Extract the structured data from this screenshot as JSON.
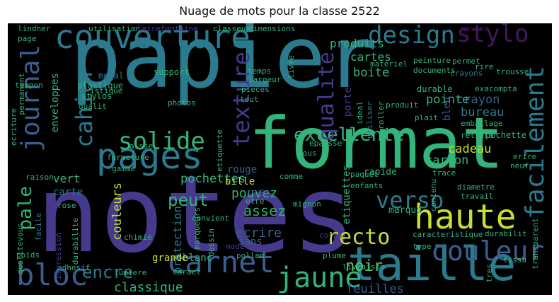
{
  "title": "Nuage de mots pour la classe 2522",
  "palette": {
    "teal": "#2a7b8e",
    "green": "#32b47b",
    "yellow": "#c8df2c",
    "indigo": "#463a8c",
    "purple": "#45165f",
    "blue": "#3a5f8e",
    "mint": "#52c469",
    "navy": "#32447f"
  },
  "words": [
    {
      "text": "papier",
      "color": "teal"
    },
    {
      "text": "notes",
      "color": "indigo"
    },
    {
      "text": "format",
      "color": "green"
    },
    {
      "text": "taille",
      "color": "teal"
    },
    {
      "text": "carnet",
      "color": "blue"
    },
    {
      "text": "couverture",
      "color": "teal"
    },
    {
      "text": "haute",
      "color": "yellow"
    },
    {
      "text": "pages",
      "color": "teal"
    },
    {
      "text": "bloc",
      "color": "blue"
    },
    {
      "text": "design",
      "color": "teal"
    },
    {
      "text": "stylo",
      "color": "purple"
    },
    {
      "text": "couleur",
      "color": "blue"
    },
    {
      "text": "jaune",
      "color": "green"
    },
    {
      "text": "recto",
      "color": "yellow"
    },
    {
      "text": "journal",
      "color": "blue"
    },
    {
      "text": "solide",
      "color": "green"
    },
    {
      "text": "excellente",
      "color": "green"
    },
    {
      "text": "verso",
      "color": "teal"
    },
    {
      "text": "facilement",
      "color": "teal"
    },
    {
      "text": "texture",
      "color": "indigo"
    },
    {
      "text": "qualite",
      "color": "indigo"
    },
    {
      "text": "cahier",
      "color": "teal"
    },
    {
      "text": "pale",
      "color": "green"
    },
    {
      "text": "encre",
      "color": "teal"
    },
    {
      "text": "classique",
      "color": "green"
    },
    {
      "text": "feuilles",
      "color": "blue"
    },
    {
      "text": "noir",
      "color": "mint"
    },
    {
      "text": "assez",
      "color": "green"
    },
    {
      "text": "pochettes",
      "color": "green"
    },
    {
      "text": "pouvez",
      "color": "green"
    },
    {
      "text": "peut",
      "color": "green"
    },
    {
      "text": "ecrire",
      "color": "blue"
    },
    {
      "text": "couleurs",
      "color": "yellow"
    },
    {
      "text": "protection",
      "color": "teal"
    },
    {
      "text": "cadeau",
      "color": "yellow"
    },
    {
      "text": "carton",
      "color": "green"
    },
    {
      "text": "bureau",
      "color": "teal"
    },
    {
      "text": "crayon",
      "color": "blue"
    },
    {
      "text": "pointe",
      "color": "green"
    },
    {
      "text": "boite",
      "color": "green"
    },
    {
      "text": "cartes",
      "color": "green"
    },
    {
      "text": "produits",
      "color": "green"
    },
    {
      "text": "enveloppes",
      "color": "green"
    },
    {
      "text": "vert",
      "color": "green"
    },
    {
      "text": "carte",
      "color": "teal"
    },
    {
      "text": "rouge",
      "color": "blue"
    },
    {
      "text": "bille",
      "color": "yellow"
    },
    {
      "text": "blanc",
      "color": "green"
    },
    {
      "text": "sans",
      "color": "blue"
    },
    {
      "text": "grande",
      "color": "yellow"
    },
    {
      "text": "marque",
      "color": "green"
    },
    {
      "text": "etiquettes",
      "color": "green"
    },
    {
      "text": "rapide",
      "color": "green"
    },
    {
      "text": "porte",
      "color": "indigo"
    },
    {
      "text": "bleu",
      "color": "blue"
    },
    {
      "text": "durable",
      "color": "green"
    },
    {
      "text": "pochette",
      "color": "green"
    },
    {
      "text": "support",
      "color": "green"
    },
    {
      "text": "plastique",
      "color": "green"
    },
    {
      "text": "stylos",
      "color": "green"
    },
    {
      "text": "qualit",
      "color": "green"
    },
    {
      "text": "metal",
      "color": "teal"
    },
    {
      "text": "temps",
      "color": "green"
    },
    {
      "text": "largeur",
      "color": "green"
    },
    {
      "text": "pieces",
      "color": "green"
    },
    {
      "text": "tout",
      "color": "green"
    },
    {
      "text": "materiel",
      "color": "green"
    },
    {
      "text": "peinture",
      "color": "green"
    },
    {
      "text": "crayons",
      "color": "teal"
    },
    {
      "text": "exacompta",
      "color": "green"
    },
    {
      "text": "emballage",
      "color": "green"
    },
    {
      "text": "tous",
      "color": "green"
    },
    {
      "text": "fermeture",
      "color": "green"
    },
    {
      "text": "aisse",
      "color": "green"
    },
    {
      "text": "rose",
      "color": "green"
    },
    {
      "text": "facile",
      "color": "teal"
    },
    {
      "text": "chimie",
      "color": "green"
    },
    {
      "text": "lumiere",
      "color": "green"
    },
    {
      "text": "adhesif",
      "color": "green"
    },
    {
      "text": "durabilite",
      "color": "green"
    },
    {
      "text": "marqueurs",
      "color": "green"
    },
    {
      "text": "modele",
      "color": "indigo"
    },
    {
      "text": "pollen",
      "color": "green"
    },
    {
      "text": "plume",
      "color": "green"
    },
    {
      "text": "livraison",
      "color": "green"
    },
    {
      "text": "type",
      "color": "green"
    },
    {
      "text": "caracteristique",
      "color": "green"
    },
    {
      "text": "durabilit",
      "color": "green"
    },
    {
      "text": "mignon",
      "color": "green"
    },
    {
      "text": "corps",
      "color": "indigo"
    },
    {
      "text": "paquet",
      "color": "green"
    },
    {
      "text": "enfants",
      "color": "green"
    },
    {
      "text": "comme",
      "color": "green"
    },
    {
      "text": "trace",
      "color": "green"
    },
    {
      "text": "neuf",
      "color": "green"
    },
    {
      "text": "erire",
      "color": "green"
    },
    {
      "text": "diametre",
      "color": "green"
    },
    {
      "text": "travail",
      "color": "green"
    },
    {
      "text": "utilisation",
      "color": "green"
    },
    {
      "text": "clairefontaine",
      "color": "indigo"
    },
    {
      "text": "classeur",
      "color": "green"
    },
    {
      "text": "dimensions",
      "color": "green"
    },
    {
      "text": "lindner",
      "color": "green"
    },
    {
      "text": "page",
      "color": "green"
    },
    {
      "text": "documents",
      "color": "green"
    },
    {
      "text": "permet",
      "color": "green"
    },
    {
      "text": "rire",
      "color": "green"
    },
    {
      "text": "ideal",
      "color": "green"
    },
    {
      "text": "utiliser",
      "color": "teal"
    },
    {
      "text": "roller",
      "color": "green"
    },
    {
      "text": "produit",
      "color": "green"
    },
    {
      "text": "plait",
      "color": "green"
    },
    {
      "text": "reliure",
      "color": "green"
    },
    {
      "text": "trousse",
      "color": "green"
    },
    {
      "text": "tissu",
      "color": "green"
    },
    {
      "text": "transparent",
      "color": "green"
    },
    {
      "text": "tres",
      "color": "green"
    },
    {
      "text": "qualitevous",
      "color": "green"
    },
    {
      "text": "impression",
      "color": "indigo"
    },
    {
      "text": "permanent",
      "color": "green"
    },
    {
      "text": "ecriture",
      "color": "green"
    },
    {
      "text": "tampon",
      "color": "green"
    },
    {
      "text": "raison",
      "color": "green"
    },
    {
      "text": "gamme",
      "color": "green"
    },
    {
      "text": "poids",
      "color": "green"
    },
    {
      "text": "etiquette",
      "color": "green"
    },
    {
      "text": "contenu",
      "color": "green"
    },
    {
      "text": "epaisse",
      "color": "green"
    },
    {
      "text": "convient",
      "color": "green"
    },
    {
      "text": "dessin",
      "color": "green"
    },
    {
      "text": "caract",
      "color": "green"
    },
    {
      "text": "photos",
      "color": "green"
    },
    {
      "text": "ecole",
      "color": "indigo"
    },
    {
      "text": "etre",
      "color": "green"
    },
    {
      "text": "livre",
      "color": "green"
    },
    {
      "text": "mesure",
      "color": "purple"
    },
    {
      "text": "istique",
      "color": "green"
    }
  ]
}
